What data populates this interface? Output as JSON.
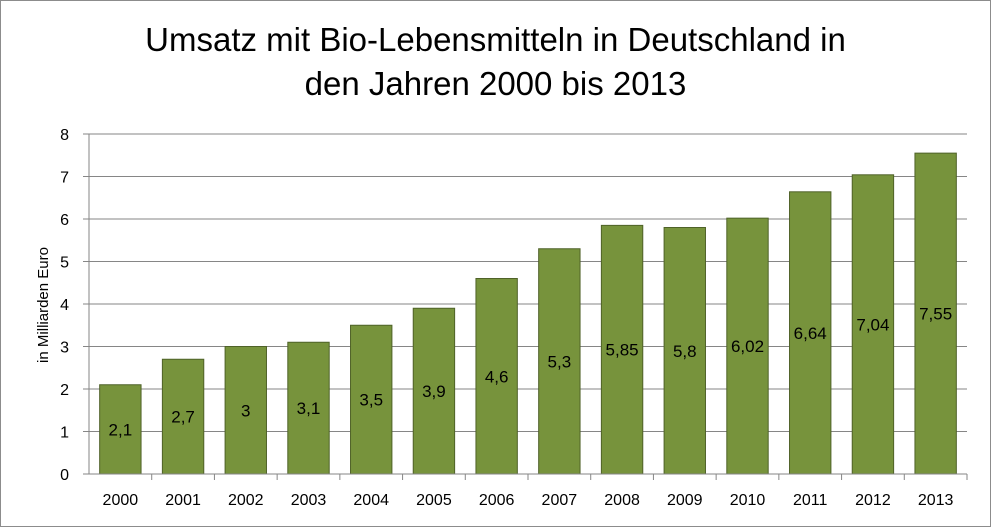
{
  "chart_data": {
    "type": "bar",
    "title_lines": [
      "Umsatz mit Bio-Lebensmitteln in Deutschland in",
      "den Jahren 2000 bis 2013"
    ],
    "ylabel": "in Milliarden Euro",
    "xlabel": "",
    "ylim": [
      0,
      8
    ],
    "y_ticks": [
      0,
      1,
      2,
      3,
      4,
      5,
      6,
      7,
      8
    ],
    "grid": true,
    "categories": [
      "2000",
      "2001",
      "2002",
      "2003",
      "2004",
      "2005",
      "2006",
      "2007",
      "2008",
      "2009",
      "2010",
      "2011",
      "2012",
      "2013"
    ],
    "values": [
      2.1,
      2.7,
      3,
      3.1,
      3.5,
      3.9,
      4.6,
      5.3,
      5.85,
      5.8,
      6.02,
      6.64,
      7.04,
      7.55
    ],
    "data_labels": [
      "2,1",
      "2,7",
      "3",
      "3,1",
      "3,5",
      "3,9",
      "4,6",
      "5,3",
      "5,85",
      "5,8",
      "6,02",
      "6,64",
      "7,04",
      "7,55"
    ],
    "colors": {
      "bar_fill": "#77933c",
      "bar_stroke": "#4f6228",
      "grid": "#868686",
      "axis": "#868686"
    }
  }
}
